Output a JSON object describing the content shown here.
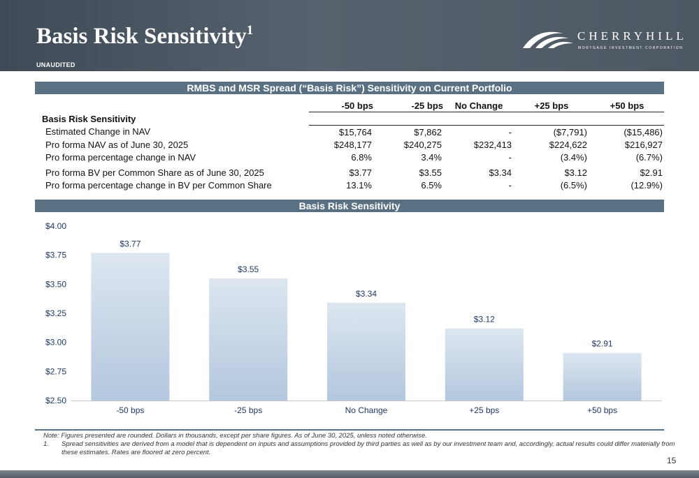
{
  "header": {
    "title": "Basis Risk Sensitivity",
    "title_superscript": "1",
    "subtitle": "UNAUDITED",
    "logo_name": "CHERRYHILL",
    "logo_tagline": "MORTGAGE INVESTMENT CORPORATION"
  },
  "table": {
    "band_title": "RMBS and MSR Spread (“Basis Risk”) Sensitivity on Current Portfolio",
    "columns": [
      "-50 bps",
      "-25 bps",
      "No Change",
      "+25 bps",
      "+50 bps"
    ],
    "section_label": "Basis Risk Sensitivity",
    "rows": [
      {
        "label": "Estimated Change in NAV",
        "values": [
          "$15,764",
          "$7,862",
          "-",
          "($7,791)",
          "($15,486)"
        ]
      },
      {
        "label": "Pro forma NAV as of June 30, 2025",
        "values": [
          "$248,177",
          "$240,275",
          "$232,413",
          "$224,622",
          "$216,927"
        ]
      },
      {
        "label": "Pro forma percentage change in NAV",
        "values": [
          "6.8%",
          "3.4%",
          "-",
          "(3.4%)",
          "(6.7%)"
        ]
      },
      {
        "label": "Pro forma BV per Common Share as of June 30, 2025",
        "values": [
          "$3.77",
          "$3.55",
          "$3.34",
          "$3.12",
          "$2.91"
        ]
      },
      {
        "label": "Pro forma percentage change in BV per Common Share",
        "values": [
          "13.1%",
          "6.5%",
          "-",
          "(6.5%)",
          "(12.9%)"
        ]
      }
    ]
  },
  "chart_band_title": "Basis Risk Sensitivity",
  "chart_data": {
    "type": "bar",
    "categories": [
      "-50 bps",
      "-25 bps",
      "No Change",
      "+25 bps",
      "+50 bps"
    ],
    "values": [
      3.77,
      3.55,
      3.34,
      3.12,
      2.91
    ],
    "data_labels": [
      "$3.77",
      "$3.55",
      "$3.34",
      "$3.12",
      "$2.91"
    ],
    "yticks": [
      "$2.50",
      "$2.75",
      "$3.00",
      "$3.25",
      "$3.50",
      "$3.75",
      "$4.00"
    ],
    "ylim": [
      2.5,
      4.0
    ],
    "grid": false,
    "legend": "none",
    "colors": {
      "bar_top": "#dde6f0",
      "bar_bottom": "#b3c7de",
      "label": "#1f3864"
    }
  },
  "footer": {
    "note": "Note: Figures presented are rounded. Dollars in thousands, except per share figures. As of June 30, 2025, unless noted otherwise.",
    "footnote_number": "1.",
    "footnote_text": "Spread sensitivities are derived from a model that is dependent on inputs and assumptions provided by third parties as well as by our investment team and, accordingly, actual results could differ materially from these estimates.  Rates are floored at zero percent.",
    "page_number": "15"
  }
}
